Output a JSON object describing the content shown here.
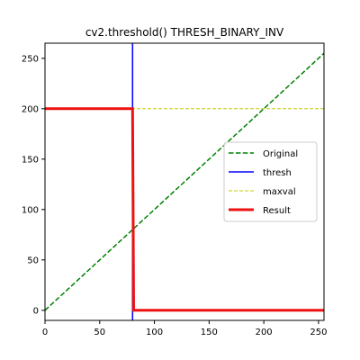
{
  "chart_data": {
    "type": "line",
    "title": "cv2.threshold() THRESH_BINARY_INV",
    "xlabel": "",
    "ylabel": "",
    "xlim": [
      0,
      255
    ],
    "ylim": [
      -10,
      265
    ],
    "x_ticks": [
      0,
      50,
      100,
      150,
      200,
      250
    ],
    "y_ticks": [
      0,
      50,
      100,
      150,
      200,
      250
    ],
    "grid": false,
    "legend_position": "center-right",
    "series": [
      {
        "name": "Original",
        "color": "#008000",
        "style": "dashed",
        "x": [
          0,
          255
        ],
        "y": [
          0,
          255
        ]
      },
      {
        "name": "thresh",
        "color": "#0000ff",
        "style": "solid",
        "orientation": "vertical",
        "x": [
          80,
          80
        ],
        "y": [
          -10,
          265
        ]
      },
      {
        "name": "maxval",
        "color": "#c8c800",
        "style": "dashed",
        "orientation": "horizontal",
        "x": [
          0,
          255
        ],
        "y": [
          200,
          200
        ]
      },
      {
        "name": "Result",
        "color": "#ee1111",
        "style": "solid-thick",
        "x": [
          0,
          80,
          81,
          255
        ],
        "y": [
          200,
          200,
          0,
          0
        ]
      }
    ]
  }
}
